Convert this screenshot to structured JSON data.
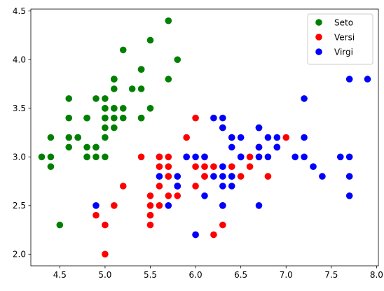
{
  "chart_data": {
    "type": "scatter",
    "title": "",
    "xlabel": "",
    "ylabel": "",
    "xlim": [
      4.18,
      8.02
    ],
    "ylim": [
      1.88,
      4.52
    ],
    "x_ticks": [
      4.5,
      5.0,
      5.5,
      6.0,
      6.5,
      7.0,
      7.5,
      8.0
    ],
    "x_tick_labels": [
      "4.5",
      "5.0",
      "5.5",
      "6.0",
      "6.5",
      "7.0",
      "7.5",
      "8.0"
    ],
    "y_ticks": [
      2.0,
      2.5,
      3.0,
      3.5,
      4.0,
      4.5
    ],
    "y_tick_labels": [
      "2.0",
      "2.5",
      "3.0",
      "3.5",
      "4.0",
      "4.5"
    ],
    "grid": false,
    "legend_position": "top-right",
    "series": [
      {
        "name": "Seto",
        "color": "#008000",
        "points": [
          [
            5.1,
            3.5
          ],
          [
            4.9,
            3.0
          ],
          [
            4.7,
            3.2
          ],
          [
            4.6,
            3.1
          ],
          [
            5.0,
            3.6
          ],
          [
            5.4,
            3.9
          ],
          [
            4.6,
            3.4
          ],
          [
            5.0,
            3.4
          ],
          [
            4.4,
            2.9
          ],
          [
            4.9,
            3.1
          ],
          [
            5.4,
            3.7
          ],
          [
            4.8,
            3.4
          ],
          [
            4.8,
            3.0
          ],
          [
            4.3,
            3.0
          ],
          [
            5.8,
            4.0
          ],
          [
            5.7,
            4.4
          ],
          [
            5.4,
            3.9
          ],
          [
            5.1,
            3.5
          ],
          [
            5.7,
            3.8
          ],
          [
            5.1,
            3.8
          ],
          [
            5.4,
            3.4
          ],
          [
            5.1,
            3.7
          ],
          [
            4.6,
            3.6
          ],
          [
            5.1,
            3.3
          ],
          [
            4.8,
            3.4
          ],
          [
            5.0,
            3.0
          ],
          [
            5.0,
            3.4
          ],
          [
            5.2,
            3.5
          ],
          [
            5.2,
            3.4
          ],
          [
            4.7,
            3.2
          ],
          [
            4.8,
            3.1
          ],
          [
            5.4,
            3.4
          ],
          [
            5.2,
            4.1
          ],
          [
            5.5,
            4.2
          ],
          [
            4.9,
            3.1
          ],
          [
            5.0,
            3.2
          ],
          [
            5.5,
            3.5
          ],
          [
            4.9,
            3.6
          ],
          [
            4.4,
            3.0
          ],
          [
            5.1,
            3.4
          ],
          [
            5.0,
            3.5
          ],
          [
            4.5,
            2.3
          ],
          [
            4.4,
            3.2
          ],
          [
            5.0,
            3.5
          ],
          [
            5.1,
            3.8
          ],
          [
            4.8,
            3.0
          ],
          [
            5.1,
            3.8
          ],
          [
            4.6,
            3.2
          ],
          [
            5.3,
            3.7
          ],
          [
            5.0,
            3.3
          ]
        ]
      },
      {
        "name": "Versi",
        "color": "#ff0000",
        "points": [
          [
            7.0,
            3.2
          ],
          [
            6.4,
            3.2
          ],
          [
            6.9,
            3.1
          ],
          [
            5.5,
            2.3
          ],
          [
            6.5,
            2.8
          ],
          [
            5.7,
            2.8
          ],
          [
            6.3,
            3.3
          ],
          [
            4.9,
            2.4
          ],
          [
            6.6,
            2.9
          ],
          [
            5.2,
            2.7
          ],
          [
            5.0,
            2.0
          ],
          [
            5.9,
            3.0
          ],
          [
            6.0,
            2.2
          ],
          [
            6.1,
            2.9
          ],
          [
            5.6,
            2.9
          ],
          [
            6.7,
            3.1
          ],
          [
            5.6,
            3.0
          ],
          [
            5.8,
            2.7
          ],
          [
            6.2,
            2.2
          ],
          [
            5.6,
            2.5
          ],
          [
            5.9,
            3.2
          ],
          [
            6.1,
            2.8
          ],
          [
            6.3,
            2.5
          ],
          [
            6.1,
            2.8
          ],
          [
            6.4,
            2.9
          ],
          [
            6.6,
            3.0
          ],
          [
            6.8,
            2.8
          ],
          [
            6.7,
            3.0
          ],
          [
            6.0,
            2.9
          ],
          [
            5.7,
            2.6
          ],
          [
            5.5,
            2.4
          ],
          [
            5.5,
            2.4
          ],
          [
            5.8,
            2.7
          ],
          [
            6.0,
            2.7
          ],
          [
            5.4,
            3.0
          ],
          [
            6.0,
            3.4
          ],
          [
            6.7,
            3.1
          ],
          [
            6.3,
            2.3
          ],
          [
            5.6,
            3.0
          ],
          [
            5.5,
            2.5
          ],
          [
            5.5,
            2.6
          ],
          [
            6.1,
            3.0
          ],
          [
            5.8,
            2.6
          ],
          [
            5.0,
            2.3
          ],
          [
            5.6,
            2.7
          ],
          [
            5.7,
            3.0
          ],
          [
            5.7,
            2.9
          ],
          [
            6.2,
            2.9
          ],
          [
            5.1,
            2.5
          ],
          [
            5.7,
            2.8
          ]
        ]
      },
      {
        "name": "Virgi",
        "color": "#0000ff",
        "points": [
          [
            6.3,
            3.3
          ],
          [
            5.8,
            2.7
          ],
          [
            7.1,
            3.0
          ],
          [
            6.3,
            2.9
          ],
          [
            6.5,
            3.0
          ],
          [
            7.6,
            3.0
          ],
          [
            4.9,
            2.5
          ],
          [
            7.3,
            2.9
          ],
          [
            6.7,
            2.5
          ],
          [
            7.2,
            3.6
          ],
          [
            6.5,
            3.2
          ],
          [
            6.4,
            2.7
          ],
          [
            6.8,
            3.0
          ],
          [
            5.7,
            2.5
          ],
          [
            5.8,
            2.8
          ],
          [
            6.4,
            3.2
          ],
          [
            6.5,
            3.0
          ],
          [
            7.7,
            3.8
          ],
          [
            7.7,
            2.6
          ],
          [
            6.0,
            2.2
          ],
          [
            6.9,
            3.2
          ],
          [
            5.6,
            2.8
          ],
          [
            7.7,
            2.8
          ],
          [
            6.3,
            2.7
          ],
          [
            6.7,
            3.3
          ],
          [
            7.2,
            3.2
          ],
          [
            6.2,
            2.8
          ],
          [
            6.1,
            3.0
          ],
          [
            6.4,
            2.8
          ],
          [
            7.2,
            3.0
          ],
          [
            7.4,
            2.8
          ],
          [
            7.9,
            3.8
          ],
          [
            6.4,
            2.8
          ],
          [
            6.3,
            2.8
          ],
          [
            6.1,
            2.6
          ],
          [
            7.7,
            3.0
          ],
          [
            6.3,
            3.4
          ],
          [
            6.4,
            3.1
          ],
          [
            6.0,
            3.0
          ],
          [
            6.9,
            3.1
          ],
          [
            6.7,
            3.1
          ],
          [
            6.9,
            3.1
          ],
          [
            5.8,
            2.7
          ],
          [
            6.8,
            3.2
          ],
          [
            6.7,
            3.3
          ],
          [
            6.7,
            3.0
          ],
          [
            6.3,
            2.5
          ],
          [
            6.5,
            3.0
          ],
          [
            6.2,
            3.4
          ],
          [
            5.9,
            3.0
          ]
        ]
      }
    ]
  }
}
